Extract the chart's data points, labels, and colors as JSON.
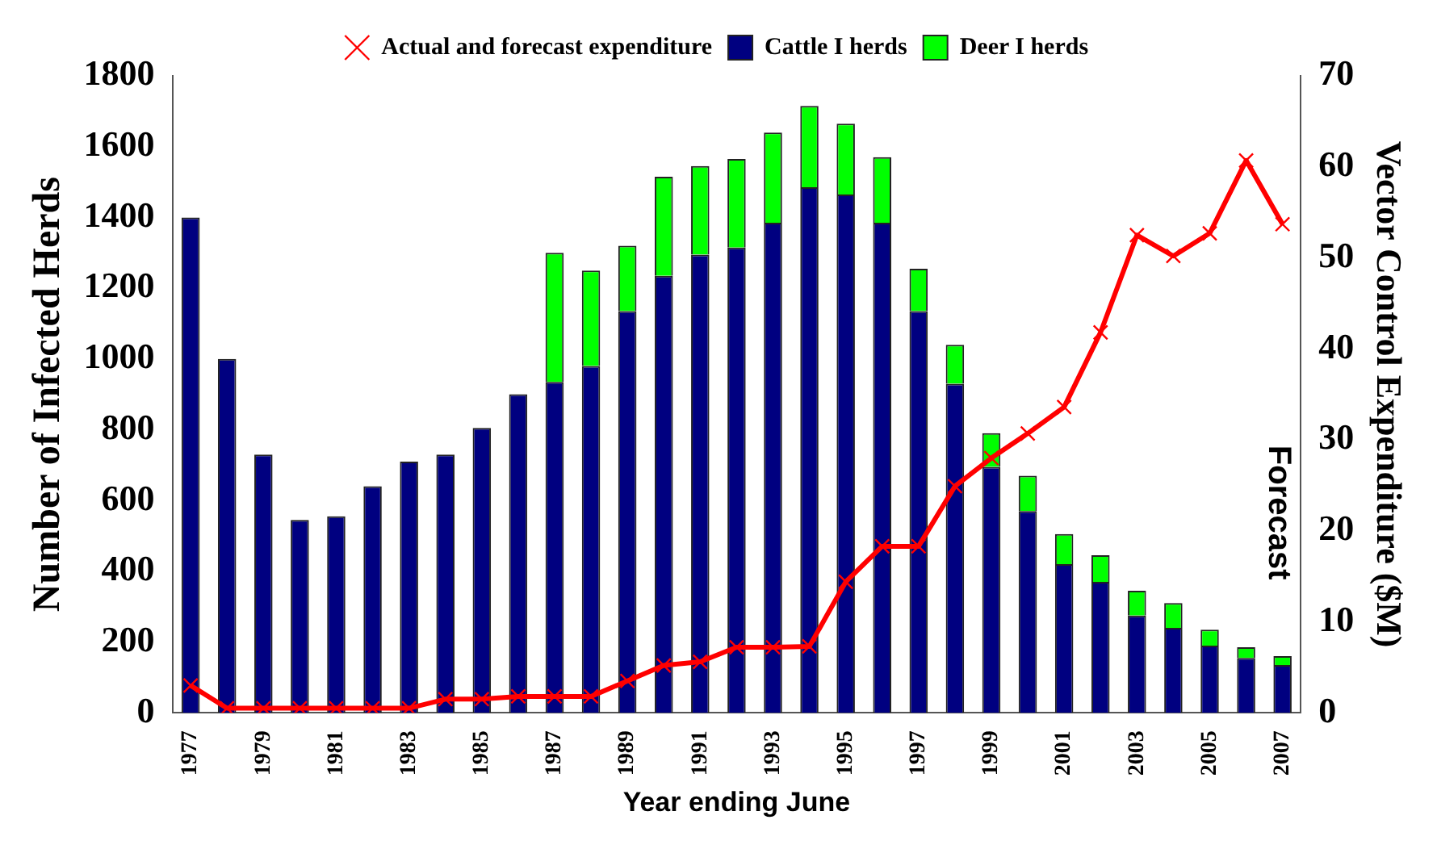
{
  "chart_data": {
    "type": "bar",
    "stacked": true,
    "xlabel": "Year ending June",
    "ylabel": "Number of Infected Herds",
    "y2label": "Vector Control Expenditure ($M)",
    "categories": [
      "1977",
      null,
      "1979",
      null,
      "1981",
      null,
      "1983",
      null,
      "1985",
      null,
      "1987",
      null,
      "1989",
      null,
      "1991",
      null,
      "1993",
      null,
      "1995",
      null,
      "1997",
      null,
      "1999",
      null,
      "2001",
      null,
      "2003",
      null,
      "2005",
      null,
      "2007"
    ],
    "series": [
      {
        "name": "Cattle I herds",
        "color": "#000080",
        "values": [
          1400,
          1000,
          730,
          545,
          555,
          640,
          710,
          730,
          805,
          900,
          935,
          980,
          1135,
          1235,
          1295,
          1315,
          1385,
          1485,
          1465,
          1385,
          1135,
          930,
          695,
          570,
          420,
          370,
          275,
          240,
          190,
          155,
          135
        ]
      },
      {
        "name": "Deer I herds",
        "color": "#00ff00",
        "values": [
          0,
          0,
          0,
          0,
          0,
          0,
          0,
          0,
          0,
          0,
          365,
          270,
          185,
          280,
          250,
          250,
          255,
          230,
          200,
          185,
          120,
          110,
          95,
          100,
          85,
          75,
          70,
          70,
          45,
          30,
          25
        ]
      },
      {
        "name": "Actual and forecast expenditure",
        "type": "line",
        "axis": "y2",
        "color": "#ff0000",
        "marker": "cross",
        "values": [
          3,
          0.5,
          0.5,
          0.5,
          0.5,
          0.5,
          0.5,
          1.5,
          1.5,
          1.8,
          1.8,
          1.8,
          3.5,
          5.2,
          5.6,
          7.2,
          7.2,
          7.3,
          14.4,
          18.3,
          18.3,
          24.9,
          28,
          30.7,
          33.6,
          41.8,
          52.5,
          50.2,
          52.7,
          60.7,
          53.7
        ]
      }
    ],
    "ylim": [
      0,
      1800
    ],
    "yticks": [
      0,
      200,
      400,
      600,
      800,
      1000,
      1200,
      1400,
      1600,
      1800
    ],
    "y2lim": [
      0,
      70
    ],
    "y2ticks": [
      0,
      10,
      20,
      30,
      40,
      50,
      60,
      70
    ],
    "grid": false,
    "legend": "top",
    "annotations": [
      "Forecast"
    ]
  }
}
